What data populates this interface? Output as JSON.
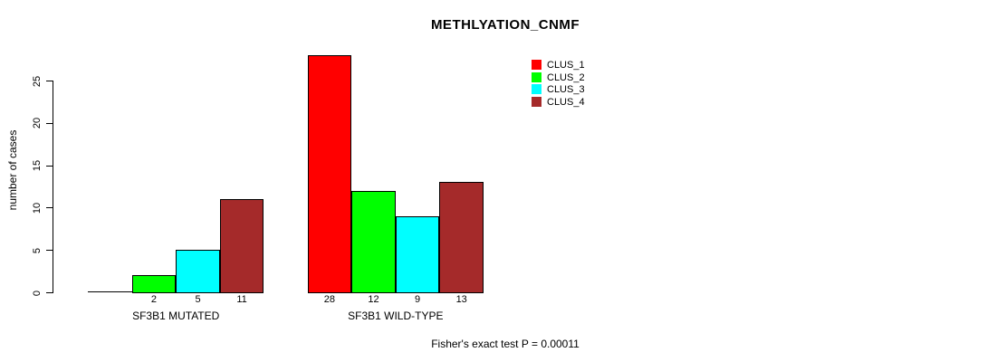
{
  "figure": {
    "background": "#ffffff",
    "text_color": "#000000"
  },
  "chart_data": {
    "type": "bar",
    "title": "METHLYATION_CNMF",
    "ylabel": "number of cases",
    "xlabel": "",
    "yticks": [
      0,
      5,
      10,
      15,
      20,
      25
    ],
    "yaxis_range": [
      0,
      25
    ],
    "grid": false,
    "categories": [
      "SF3B1 MUTATED",
      "SF3B1 WILD-TYPE"
    ],
    "series": [
      {
        "name": "CLUS_1",
        "color": "#FF0000",
        "values": [
          0,
          28
        ]
      },
      {
        "name": "CLUS_2",
        "color": "#00FF00",
        "values": [
          2,
          12
        ]
      },
      {
        "name": "CLUS_3",
        "color": "#00FFFF",
        "values": [
          5,
          9
        ]
      },
      {
        "name": "CLUS_4",
        "color": "#A52A2A",
        "values": [
          11,
          13
        ]
      }
    ],
    "value_labels": [
      [
        "",
        "2",
        "5",
        "11"
      ],
      [
        "28",
        "12",
        "9",
        "13"
      ]
    ],
    "legend": {
      "position": "top-right",
      "entries": [
        {
          "label": "CLUS_1",
          "color": "#FF0000"
        },
        {
          "label": "CLUS_2",
          "color": "#00FF00"
        },
        {
          "label": "CLUS_3",
          "color": "#00FFFF"
        },
        {
          "label": "CLUS_4",
          "color": "#A52A2A"
        }
      ]
    },
    "annotation": "Fisher's exact test P = 0.00011"
  }
}
